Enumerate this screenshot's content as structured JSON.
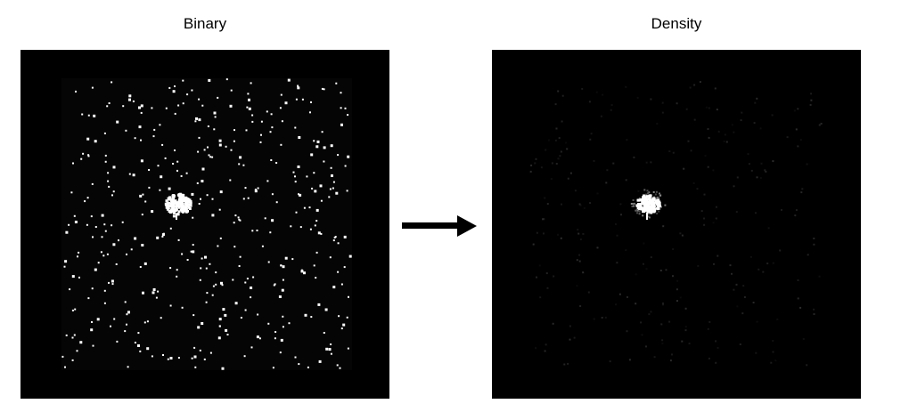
{
  "panels": {
    "binary": {
      "title": "Binary"
    },
    "density": {
      "title": "Density"
    }
  },
  "colors": {
    "background": "#000000",
    "point": "#ffffff",
    "arrow": "#000000"
  },
  "icons": {
    "arrow": "arrow-right-icon"
  }
}
